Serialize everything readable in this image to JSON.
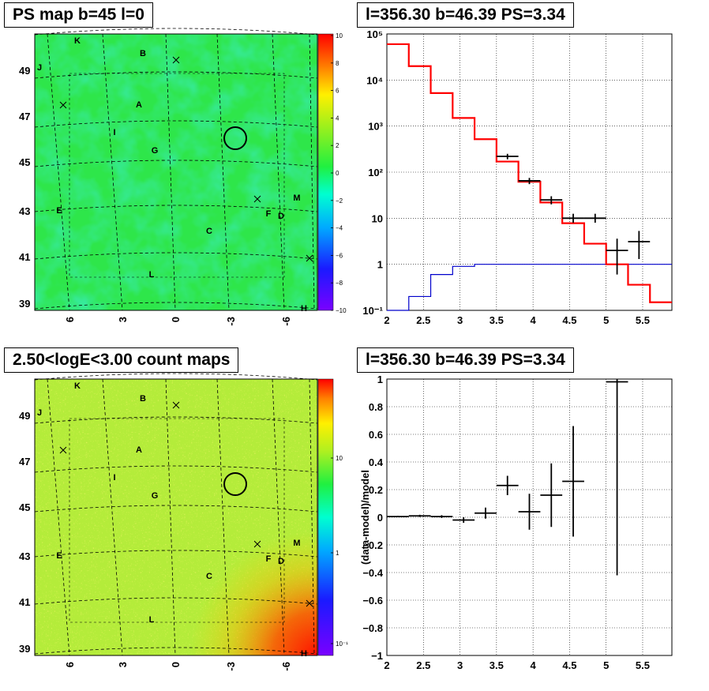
{
  "panels": {
    "ps_map_title": "PS map b=45 l=0",
    "count_map_title": "2.50<logE<3.00 count maps",
    "spectrum_title": "l=356.30 b=46.39 PS=3.34",
    "residual_title": "l=356.30 b=46.39 PS=3.34"
  },
  "maps": {
    "lat_ticks": [
      "49",
      "47",
      "45",
      "43",
      "41",
      "39"
    ],
    "lon_ticks": [
      "6",
      "3",
      "0",
      "-3",
      "-6"
    ],
    "sources": [
      "K",
      "B",
      "J",
      "A",
      "I",
      "G",
      "M",
      "E",
      "F",
      "D",
      "C",
      "L",
      "H"
    ],
    "ps_colorbar_ticks": [
      "10",
      "8",
      "6",
      "4",
      "2",
      "0",
      "−2",
      "−4",
      "−6",
      "−8",
      "−10"
    ],
    "count_colorbar_ticks": [
      "10",
      "1",
      "10⁻¹"
    ]
  },
  "colors": {
    "model_line": "#ff0000",
    "aux_line": "#0000cc",
    "data_points": "#000000",
    "ps_map_base": "#2ee64a",
    "count_map_base": "#b4ec3a"
  },
  "chart_data": [
    {
      "type": "line",
      "title": "l=356.30 b=46.39 PS=3.34",
      "xlabel": "",
      "ylabel": "",
      "xlim": [
        2,
        5.9
      ],
      "ylim": [
        0.1,
        100000
      ],
      "yscale": "log",
      "grid": true,
      "x_ticks": [
        "2",
        "2.5",
        "3",
        "3.5",
        "4",
        "4.5",
        "5",
        "5.5"
      ],
      "y_ticks": [
        "10⁻¹",
        "1",
        "10",
        "10²",
        "10³",
        "10⁴",
        "10⁵"
      ],
      "series": [
        {
          "style": "step",
          "bin_edges": [
            2,
            2.3,
            2.6,
            2.9,
            3.2,
            3.5,
            3.8,
            4.1,
            4.4,
            4.7,
            5.0,
            5.3,
            5.6,
            5.9
          ],
          "values": [
            60000,
            20000,
            5200,
            1500,
            520,
            170,
            62,
            22,
            7.8,
            2.8,
            1.0,
            0.36,
            0.15
          ]
        },
        {
          "style": "step",
          "bin_edges": [
            2,
            2.3,
            2.6,
            2.9,
            3.2,
            3.5,
            3.8,
            4.1,
            4.4,
            4.7,
            5.0,
            5.3,
            5.6,
            5.9
          ],
          "values": [
            0.1,
            0.2,
            0.6,
            0.9,
            1.0,
            1.0,
            1.0,
            1.0,
            1.0,
            1.0,
            1.0,
            1.0,
            1.0
          ]
        },
        {
          "style": "points",
          "x": [
            3.65,
            3.95,
            4.25,
            4.55,
            4.85,
            5.15,
            5.45
          ],
          "y": [
            220,
            65,
            25,
            10,
            10,
            2.0,
            3.1
          ],
          "xerr": 0.15,
          "yerr_low": [
            190,
            55,
            20,
            8,
            8,
            0.6,
            1.3
          ],
          "yerr_high": [
            250,
            75,
            30,
            12.5,
            12.5,
            3.6,
            5.3
          ]
        }
      ]
    },
    {
      "type": "scatter",
      "title": "l=356.30 b=46.39 PS=3.34",
      "xlabel": "",
      "ylabel": "(data-model)/model",
      "xlim": [
        2,
        5.9
      ],
      "ylim": [
        -1,
        1
      ],
      "grid": true,
      "x_ticks": [
        "2",
        "2.5",
        "3",
        "3.5",
        "4",
        "4.5",
        "5",
        "5.5"
      ],
      "y_ticks": [
        "1",
        "0.8",
        "0.6",
        "0.4",
        "0.2",
        "0",
        "−0.2",
        "−0.4",
        "−0.6",
        "−0.8",
        "−1"
      ],
      "series": [
        {
          "x": [
            2.15,
            2.45,
            2.75,
            3.05,
            3.35,
            3.65,
            3.95,
            4.25,
            4.55,
            5.15
          ],
          "y": [
            0.005,
            0.01,
            0.005,
            -0.02,
            0.03,
            0.23,
            0.04,
            0.16,
            0.26,
            0.98
          ],
          "xerr": 0.15,
          "yerr": [
            0.005,
            0.008,
            0.01,
            0.02,
            0.04,
            0.07,
            0.13,
            0.23,
            0.4,
            1.4
          ]
        }
      ]
    }
  ]
}
